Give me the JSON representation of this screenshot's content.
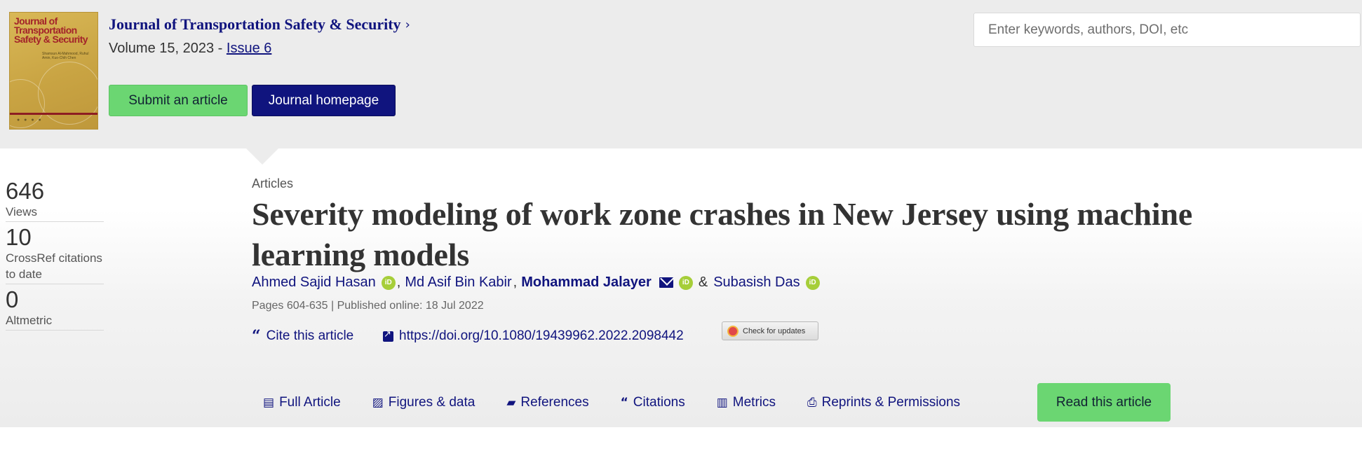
{
  "journal": {
    "name": "Journal of Transportation Safety & Security",
    "volume_text": "Volume 15, 2023 - ",
    "issue_text": "Issue 6",
    "cover": {
      "title": "Journal of Transportation Safety & Security",
      "editors": "Shamsun Al-Mahmood, Ruhul Amin, Kuo-Chih Chen"
    },
    "submit_label": "Submit an article",
    "homepage_label": "Journal homepage"
  },
  "search": {
    "placeholder": "Enter keywords, authors, DOI, etc"
  },
  "metrics": [
    {
      "value": "646",
      "label": "Views"
    },
    {
      "value": "10",
      "label": "CrossRef citations to date"
    },
    {
      "value": "0",
      "label": "Altmetric"
    }
  ],
  "article": {
    "category": "Articles",
    "title": "Severity modeling of work zone crashes in New Jersey using machine learning models",
    "authors": [
      {
        "name": "Ahmed Sajid Hasan",
        "orcid": true,
        "corresponding": false
      },
      {
        "name": "Md Asif Bin Kabir",
        "orcid": false,
        "corresponding": false
      },
      {
        "name": "Mohammad Jalayer",
        "orcid": true,
        "corresponding": true
      },
      {
        "name": "Subasish Das",
        "orcid": true,
        "corresponding": false
      }
    ],
    "pages_line": "Pages 604-635 | Published online: 18 Jul 2022",
    "cite_label": "Cite this article",
    "doi": "https://doi.org/10.1080/19439962.2022.2098442",
    "check_updates_label": "Check for updates"
  },
  "tabs": [
    {
      "label": "Full Article",
      "icon": "file-text-icon"
    },
    {
      "label": "Figures & data",
      "icon": "image-icon"
    },
    {
      "label": "References",
      "icon": "book-icon"
    },
    {
      "label": "Citations",
      "icon": "quote-icon"
    },
    {
      "label": "Metrics",
      "icon": "bar-chart-icon"
    },
    {
      "label": "Reprints & Permissions",
      "icon": "print-icon"
    }
  ],
  "read_button_label": "Read this article",
  "colors": {
    "brand_navy": "#10147e",
    "accent_green": "#6bd672",
    "orcid_green": "#a6ce39",
    "banner_gray": "#ececec"
  }
}
